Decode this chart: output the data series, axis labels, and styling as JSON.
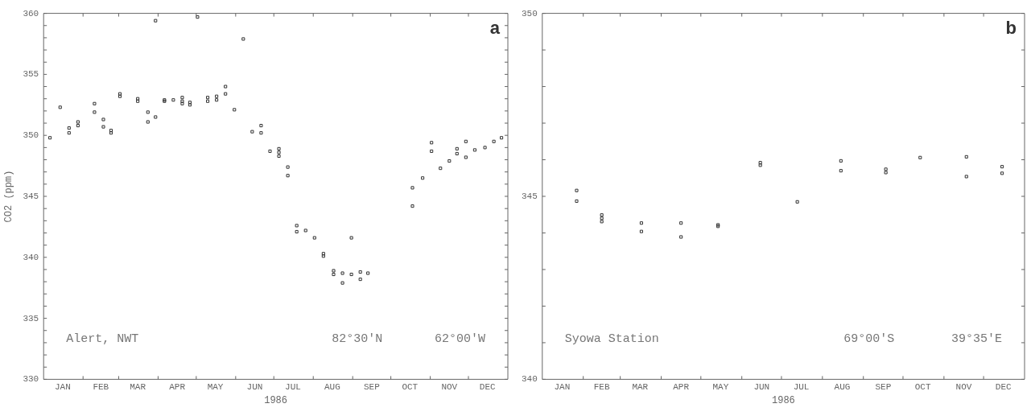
{
  "chart_data": [
    {
      "type": "scatter",
      "xlabel": "1986",
      "ylabel": "CO2 (ppm)",
      "annotations": [
        "a",
        "Alert, NWT",
        "82°30'N",
        "62°00'W"
      ],
      "marker": "square",
      "grid": false,
      "color": "#333333",
      "x": [
        "1986-01-06",
        "1986-01-14",
        "1986-01-21",
        "1986-01-21",
        "1986-01-28",
        "1986-01-28",
        "1986-02-10",
        "1986-02-10",
        "1986-02-17",
        "1986-02-17",
        "1986-02-23",
        "1986-02-23",
        "1986-03-02",
        "1986-03-02",
        "1986-03-16",
        "1986-03-16",
        "1986-03-24",
        "1986-03-24",
        "1986-03-30",
        "1986-03-30",
        "1986-04-06",
        "1986-04-06",
        "1986-04-13",
        "1986-04-20",
        "1986-04-20",
        "1986-04-20",
        "1986-04-26",
        "1986-04-26",
        "1986-05-02",
        "1986-05-10",
        "1986-05-10",
        "1986-05-17",
        "1986-05-17",
        "1986-05-24",
        "1986-05-24",
        "1986-05-31",
        "1986-06-07",
        "1986-06-14",
        "1986-06-21",
        "1986-06-21",
        "1986-06-28",
        "1986-07-05",
        "1986-07-05",
        "1986-07-05",
        "1986-07-12",
        "1986-07-12",
        "1986-07-19",
        "1986-07-19",
        "1986-07-26",
        "1986-08-02",
        "1986-08-09",
        "1986-08-09",
        "1986-08-17",
        "1986-08-17",
        "1986-08-24",
        "1986-08-24",
        "1986-08-31",
        "1986-08-31",
        "1986-09-07",
        "1986-09-07",
        "1986-09-13",
        "1986-10-18",
        "1986-10-18",
        "1986-10-26",
        "1986-11-02",
        "1986-11-02",
        "1986-11-09",
        "1986-11-16",
        "1986-11-22",
        "1986-11-22",
        "1986-11-29",
        "1986-11-29",
        "1986-12-06",
        "1986-12-14",
        "1986-12-21",
        "1986-12-27"
      ],
      "values": [
        349.8,
        352.3,
        350.6,
        350.2,
        351.1,
        350.8,
        352.6,
        351.9,
        351.3,
        350.7,
        350.4,
        350.2,
        353.4,
        353.2,
        353.0,
        352.8,
        351.9,
        351.1,
        359.4,
        351.5,
        352.9,
        352.8,
        352.9,
        353.1,
        352.8,
        352.6,
        352.7,
        352.5,
        359.7,
        353.1,
        352.8,
        353.2,
        352.9,
        354.0,
        353.4,
        352.1,
        357.9,
        350.3,
        350.8,
        350.2,
        348.7,
        348.9,
        348.6,
        348.3,
        347.4,
        346.7,
        342.6,
        342.1,
        342.2,
        341.6,
        340.3,
        340.1,
        338.9,
        338.6,
        338.7,
        337.9,
        338.6,
        341.6,
        338.8,
        338.2,
        338.7,
        345.7,
        344.2,
        346.5,
        349.4,
        348.7,
        347.3,
        347.9,
        348.9,
        348.5,
        349.5,
        348.2,
        348.8,
        349.0,
        349.5,
        349.8
      ],
      "xlim": [
        "1986-01-01",
        "1987-01-01"
      ],
      "xticks": [
        {
          "value": "1986-01-16",
          "label": "JAN"
        },
        {
          "value": "1986-02-01",
          "label": null
        },
        {
          "value": "1986-02-15",
          "label": "FEB"
        },
        {
          "value": "1986-03-01",
          "label": null
        },
        {
          "value": "1986-03-16",
          "label": "MAR"
        },
        {
          "value": "1986-04-01",
          "label": null
        },
        {
          "value": "1986-04-16",
          "label": "APR"
        },
        {
          "value": "1986-05-01",
          "label": null
        },
        {
          "value": "1986-05-16",
          "label": "MAY"
        },
        {
          "value": "1986-06-01",
          "label": null
        },
        {
          "value": "1986-06-16",
          "label": "JUN"
        },
        {
          "value": "1986-07-01",
          "label": null
        },
        {
          "value": "1986-07-16",
          "label": "JUL"
        },
        {
          "value": "1986-08-01",
          "label": null
        },
        {
          "value": "1986-08-16",
          "label": "AUG"
        },
        {
          "value": "1986-09-01",
          "label": null
        },
        {
          "value": "1986-09-16",
          "label": "SEP"
        },
        {
          "value": "1986-10-01",
          "label": null
        },
        {
          "value": "1986-10-16",
          "label": "OCT"
        },
        {
          "value": "1986-11-01",
          "label": null
        },
        {
          "value": "1986-11-16",
          "label": "NOV"
        },
        {
          "value": "1986-12-01",
          "label": null
        },
        {
          "value": "1986-12-16",
          "label": "DEC"
        }
      ],
      "ylim": [
        330,
        360
      ],
      "yticks": [
        330,
        {
          "value": 331,
          "label": null
        },
        {
          "value": 332,
          "label": null
        },
        {
          "value": 333,
          "label": null
        },
        {
          "value": 334,
          "label": null
        },
        335,
        {
          "value": 336,
          "label": null
        },
        {
          "value": 337,
          "label": null
        },
        {
          "value": 338,
          "label": null
        },
        {
          "value": 339,
          "label": null
        },
        340,
        {
          "value": 341,
          "label": null
        },
        {
          "value": 342,
          "label": null
        },
        {
          "value": 343,
          "label": null
        },
        {
          "value": 344,
          "label": null
        },
        345,
        {
          "value": 346,
          "label": null
        },
        {
          "value": 347,
          "label": null
        },
        {
          "value": 348,
          "label": null
        },
        {
          "value": 349,
          "label": null
        },
        350,
        {
          "value": 351,
          "label": null
        },
        {
          "value": 352,
          "label": null
        },
        {
          "value": 353,
          "label": null
        },
        {
          "value": 354,
          "label": null
        },
        355,
        {
          "value": 356,
          "label": null
        },
        {
          "value": 357,
          "label": null
        },
        {
          "value": 358,
          "label": null
        },
        {
          "value": 359,
          "label": null
        },
        360
      ]
    },
    {
      "type": "scatter",
      "xlabel": "1986",
      "annotations": [
        "b",
        "Syowa Station",
        "69°00'S",
        "39°35'E"
      ],
      "marker": "square",
      "grid": false,
      "color": "#333333",
      "x": [
        "1986-01-27",
        "1986-01-27",
        "1986-02-15",
        "1986-02-15",
        "1986-02-15",
        "1986-03-17",
        "1986-03-17",
        "1986-04-16",
        "1986-04-16",
        "1986-05-14",
        "1986-05-14",
        "1986-06-15",
        "1986-06-15",
        "1986-07-13",
        "1986-08-15",
        "1986-08-15",
        "1986-09-18",
        "1986-09-18",
        "1986-10-14",
        "1986-11-18",
        "1986-11-18",
        "1986-12-15",
        "1986-12-15"
      ],
      "values": [
        345.16,
        344.87,
        344.49,
        344.4,
        344.31,
        344.27,
        344.04,
        344.27,
        343.89,
        344.22,
        344.18,
        345.92,
        345.85,
        344.85,
        345.97,
        345.7,
        345.74,
        345.65,
        346.06,
        346.08,
        345.54,
        345.81,
        345.63
      ],
      "xlim": [
        "1986-01-01",
        "1987-01-01"
      ],
      "xticks": [
        {
          "value": "1986-01-16",
          "label": "JAN"
        },
        {
          "value": "1986-02-01",
          "label": null
        },
        {
          "value": "1986-02-15",
          "label": "FEB"
        },
        {
          "value": "1986-03-01",
          "label": null
        },
        {
          "value": "1986-03-16",
          "label": "MAR"
        },
        {
          "value": "1986-04-01",
          "label": null
        },
        {
          "value": "1986-04-16",
          "label": "APR"
        },
        {
          "value": "1986-05-01",
          "label": null
        },
        {
          "value": "1986-05-16",
          "label": "MAY"
        },
        {
          "value": "1986-06-01",
          "label": null
        },
        {
          "value": "1986-06-16",
          "label": "JUN"
        },
        {
          "value": "1986-07-01",
          "label": null
        },
        {
          "value": "1986-07-16",
          "label": "JUL"
        },
        {
          "value": "1986-08-01",
          "label": null
        },
        {
          "value": "1986-08-16",
          "label": "AUG"
        },
        {
          "value": "1986-09-01",
          "label": null
        },
        {
          "value": "1986-09-16",
          "label": "SEP"
        },
        {
          "value": "1986-10-01",
          "label": null
        },
        {
          "value": "1986-10-16",
          "label": "OCT"
        },
        {
          "value": "1986-11-01",
          "label": null
        },
        {
          "value": "1986-11-16",
          "label": "NOV"
        },
        {
          "value": "1986-12-01",
          "label": null
        },
        {
          "value": "1986-12-16",
          "label": "DEC"
        }
      ],
      "ylim": [
        340,
        350
      ],
      "yticks": [
        340,
        {
          "value": 341,
          "label": null
        },
        {
          "value": 342,
          "label": null
        },
        {
          "value": 343,
          "label": null
        },
        {
          "value": 344,
          "label": null
        },
        345,
        {
          "value": 346,
          "label": null
        },
        {
          "value": 347,
          "label": null
        },
        {
          "value": 348,
          "label": null
        },
        {
          "value": 349,
          "label": null
        },
        350
      ]
    }
  ]
}
